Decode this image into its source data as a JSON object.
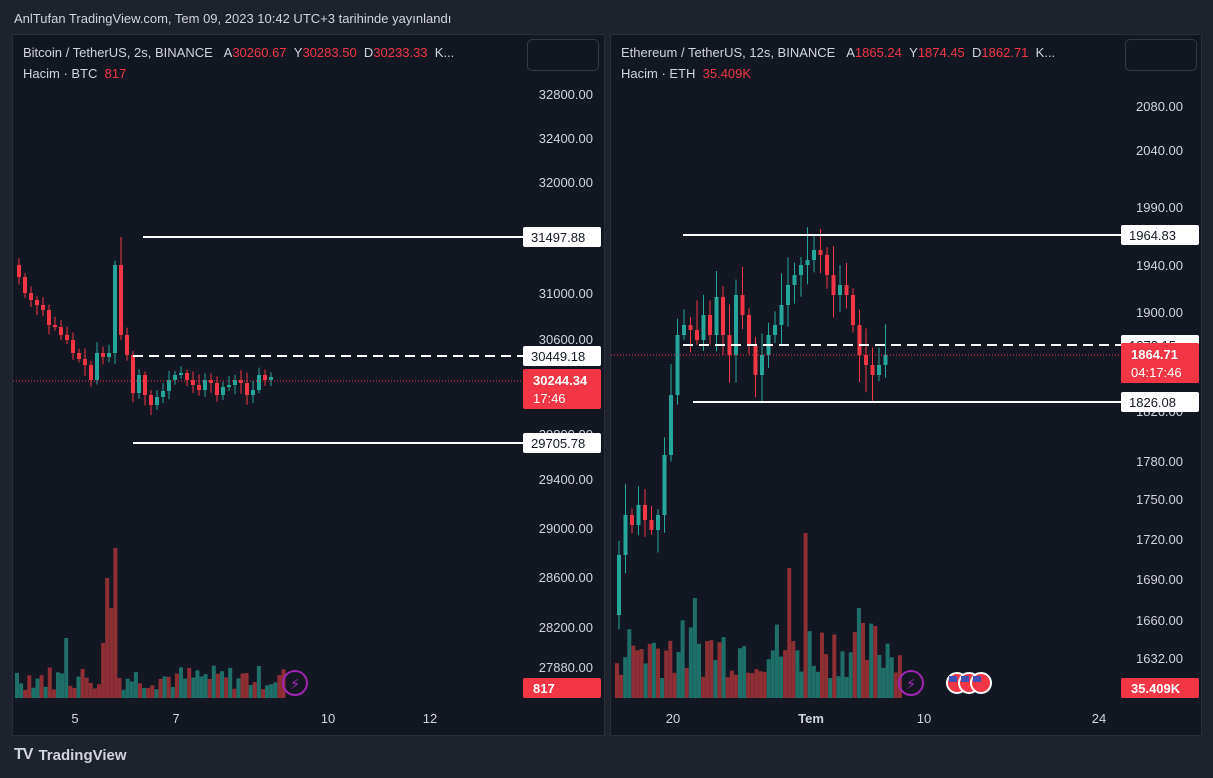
{
  "header": {
    "title": "AnlTufan TradingView.com, Tem 09, 2023 10:42 UTC+3 tarihinde yayınlandı"
  },
  "footer": {
    "logo_text": "TradingView",
    "logo_mark": "TV"
  },
  "colors": {
    "up": "#26a69a",
    "down": "#f23645",
    "bg": "#131722",
    "text": "#d1d4dc",
    "up_volume": "#1f6f69",
    "down_volume": "#8e2f35"
  },
  "left": {
    "symbol": "Bitcoin / TetherUS, 2s, BINANCE",
    "ohlc": [
      {
        "key": "A",
        "value": "30260.67"
      },
      {
        "key": "Y",
        "value": "30283.50"
      },
      {
        "key": "D",
        "value": "30233.33"
      },
      {
        "key": "K...",
        "value": ""
      }
    ],
    "volume_label": "Hacim · BTC",
    "volume_value": "817",
    "yticks": [
      "32800.00",
      "32400.00",
      "32000.00",
      "31000.00",
      "30600.00",
      "29800.00",
      "29400.00",
      "29000.00",
      "28600.00",
      "28200.00",
      "27880.00"
    ],
    "xticks": [
      "5",
      "7",
      "10",
      "12"
    ],
    "hlines": [
      {
        "label": "31497.88",
        "dashed": false
      },
      {
        "label": "30449.18",
        "dashed": true
      },
      {
        "label": "29705.78",
        "dashed": false
      }
    ],
    "price_tag": {
      "price": "30244.34",
      "countdown": "17:46"
    },
    "volume_tag": "817"
  },
  "right": {
    "symbol": "Ethereum / TetherUS, 12s, BINANCE",
    "ohlc": [
      {
        "key": "A",
        "value": "1865.24"
      },
      {
        "key": "Y",
        "value": "1874.45"
      },
      {
        "key": "D",
        "value": "1862.71"
      },
      {
        "key": "K...",
        "value": ""
      }
    ],
    "volume_label": "Hacim · ETH",
    "volume_value": "35.409K",
    "yticks": [
      "2080.00",
      "2040.00",
      "1990.00",
      "1940.00",
      "1900.00",
      "1826.00",
      "1780.00",
      "1750.00",
      "1720.00",
      "1690.00",
      "1660.00",
      "1632.00"
    ],
    "xticks": [
      "20",
      "Tem",
      "10",
      "24"
    ],
    "hlines": [
      {
        "label": "1964.83",
        "dashed": false
      },
      {
        "label": "1872.15",
        "dashed": true
      },
      {
        "label": "1826.08",
        "dashed": false
      }
    ],
    "price_tag": {
      "price": "1864.71",
      "countdown": "04:17:46"
    },
    "volume_tag": "35.409K"
  }
}
